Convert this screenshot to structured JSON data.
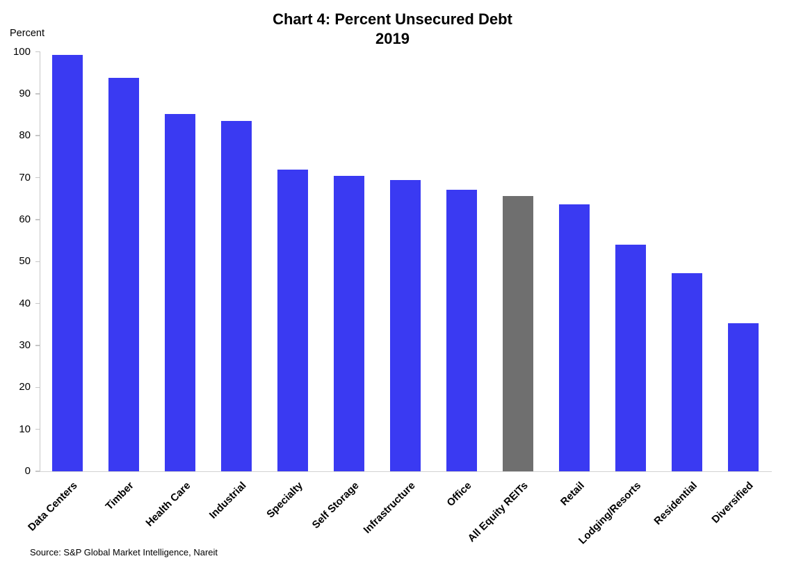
{
  "chart_data": {
    "type": "bar",
    "title": "Chart 4: Percent Unsecured Debt",
    "subtitle": "2019",
    "ylabel": "Percent",
    "xlabel": "",
    "ylim": [
      0,
      100
    ],
    "yticks": [
      100,
      90,
      80,
      70,
      60,
      50,
      40,
      30,
      20,
      10,
      0
    ],
    "grid": false,
    "legend_position": "none",
    "categories": [
      "Data Centers",
      "Timber",
      "Health Care",
      "Industrial",
      "Specialty",
      "Self Storage",
      "Infrastructure",
      "Office",
      "All Equity REITs",
      "Retail",
      "Lodging/Resorts",
      "Residential",
      "Diversified"
    ],
    "values": [
      99.3,
      93.8,
      85.2,
      83.5,
      71.9,
      70.5,
      69.4,
      67.1,
      65.6,
      63.7,
      54.1,
      47.2,
      35.3
    ],
    "highlight_category": "All Equity REITs",
    "highlight_index": 8,
    "colors": {
      "bar_default": "#3A3AF2",
      "bar_highlight": "#6F6F6F",
      "axis": "#C6C6C6",
      "text": "#000000"
    },
    "source": "Source: S&P Global Market Intelligence, Nareit"
  }
}
